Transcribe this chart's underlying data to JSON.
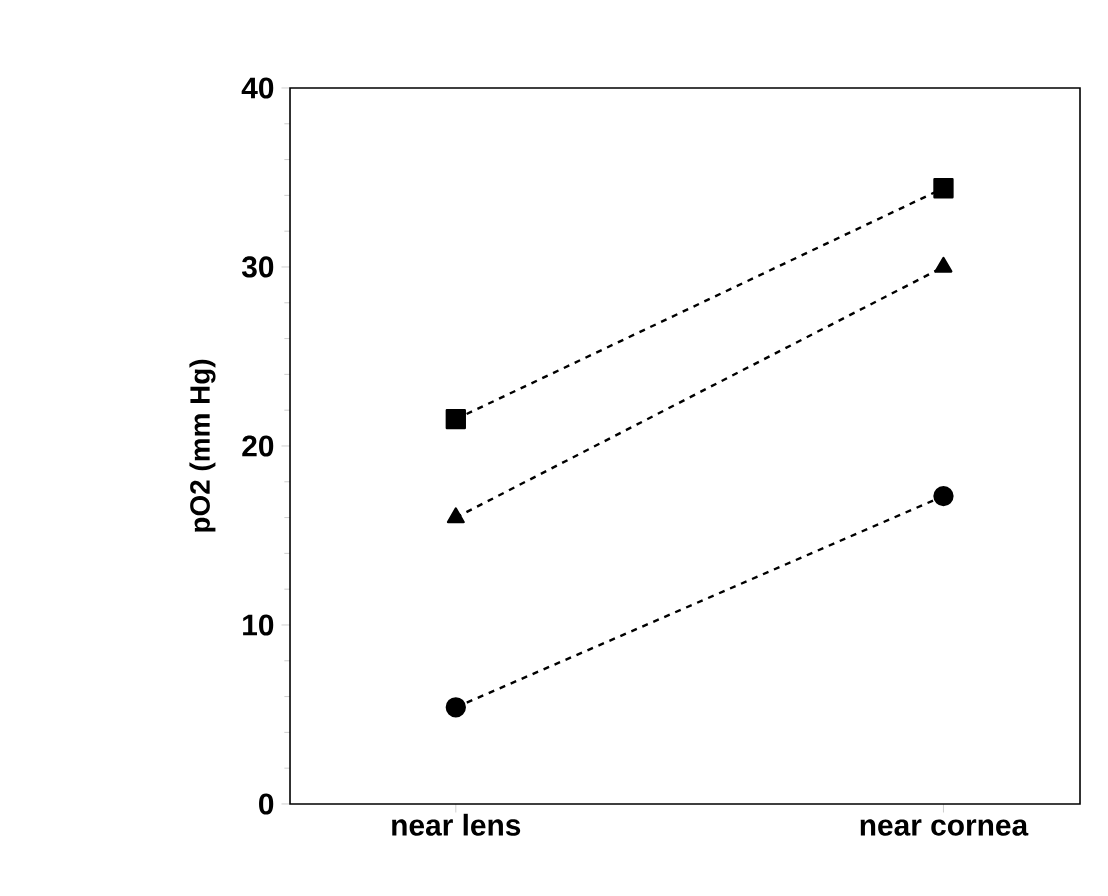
{
  "chart_data": {
    "type": "line",
    "ylabel": "pO2 (mm Hg)",
    "categories": [
      "near lens",
      "near cornea"
    ],
    "ylim": [
      0,
      40
    ],
    "yticks": [
      0,
      10,
      20,
      30,
      40
    ],
    "line_style": "dashed",
    "grid": false,
    "series": [
      {
        "color": "#000000",
        "marker": "square",
        "values": [
          21.5,
          34.4
        ]
      },
      {
        "color": "#000000",
        "marker": "triangle",
        "values": [
          16.0,
          30.0
        ]
      },
      {
        "color": "#000000",
        "marker": "circle",
        "values": [
          5.4,
          17.2
        ]
      }
    ]
  }
}
